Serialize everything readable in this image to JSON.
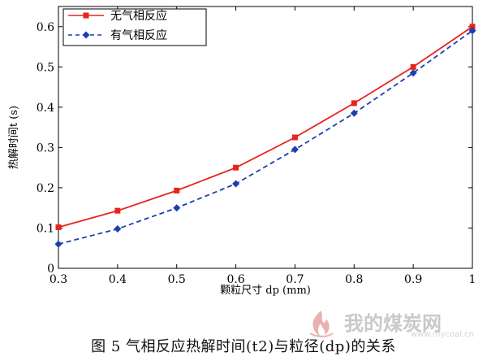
{
  "chart_data": {
    "type": "line",
    "title": "",
    "xlabel": "颗粒尺寸 dp (mm)",
    "ylabel": "热解时间t (s)",
    "xlim": [
      0.3,
      1.0
    ],
    "ylim": [
      0,
      0.65
    ],
    "x_ticks": [
      "0.3",
      "0.4",
      "0.5",
      "0.6",
      "0.7",
      "0.8",
      "0.9",
      "1"
    ],
    "y_ticks": [
      "0",
      "0.1",
      "0.2",
      "0.3",
      "0.4",
      "0.5",
      "0.6"
    ],
    "grid": false,
    "legend_position": "top-left",
    "x": [
      0.3,
      0.4,
      0.5,
      0.6,
      0.7,
      0.8,
      0.9,
      1.0
    ],
    "series": [
      {
        "name": "无气相反应",
        "values": [
          0.102,
          0.143,
          0.193,
          0.25,
          0.325,
          0.41,
          0.5,
          0.6
        ],
        "color": "#e8231e",
        "line_style": "solid",
        "marker": "square"
      },
      {
        "name": "有气相反应",
        "values": [
          0.06,
          0.098,
          0.15,
          0.21,
          0.295,
          0.385,
          0.485,
          0.59
        ],
        "color": "#1b3fb0",
        "line_style": "dashed",
        "marker": "diamond"
      }
    ]
  },
  "caption": "图 5 气相反应热解时间(t2)与粒径(dp)的关系",
  "watermark": {
    "text": "我的煤炭网",
    "url": "www.mycoal.cn"
  }
}
